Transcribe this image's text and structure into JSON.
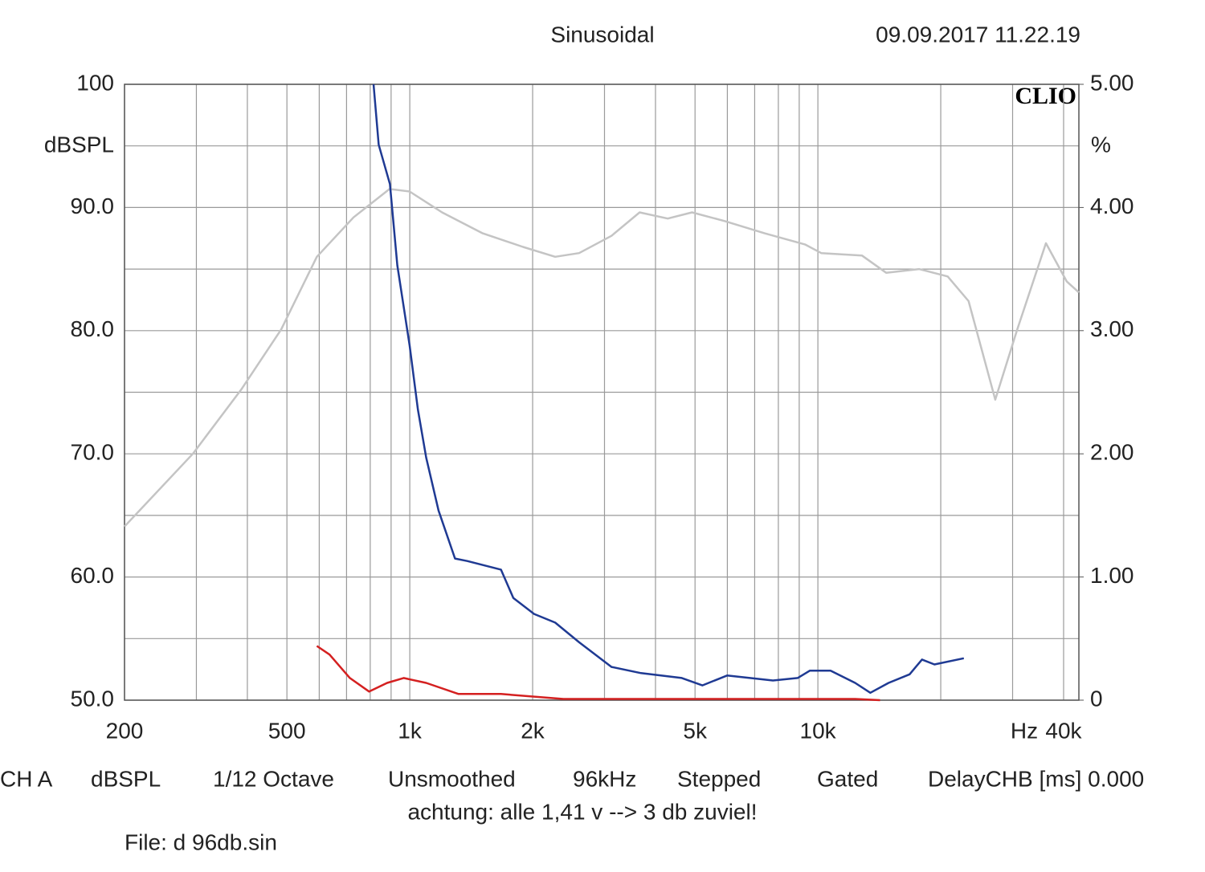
{
  "chart_data": {
    "type": "line",
    "title": "Sinusoidal",
    "timestamp": "09.09.2017 11.22.19",
    "logo": "CLIO",
    "y_label": "dBSPL",
    "y2_label": "%",
    "x_label": "Hz",
    "x_log": true,
    "grid": true,
    "xlim": [
      200,
      43600
    ],
    "xticks": [
      200,
      500,
      {
        "value": 1000,
        "label": "1k"
      },
      {
        "value": 2000,
        "label": "2k"
      },
      {
        "value": 5000,
        "label": "5k"
      },
      {
        "value": 10000,
        "label": "10k"
      },
      {
        "value": 40000,
        "label": "40k"
      }
    ],
    "xgrid": [
      300,
      400,
      600,
      700,
      800,
      900,
      3000,
      4000,
      6000,
      7000,
      8000,
      9000,
      20000,
      30000
    ],
    "ylim": [
      50,
      100
    ],
    "yticks": [
      {
        "value": 50,
        "label": "50.0"
      },
      {
        "value": 60,
        "label": "60.0"
      },
      {
        "value": 70,
        "label": "70.0"
      },
      {
        "value": 80,
        "label": "80.0"
      },
      {
        "value": 90,
        "label": "90.0"
      },
      100
    ],
    "ygrid": [
      55,
      65,
      75,
      85,
      95
    ],
    "y2lim": [
      0,
      5
    ],
    "y2ticks": [
      0,
      {
        "value": 1,
        "label": "1.00"
      },
      {
        "value": 2,
        "label": "2.00"
      },
      {
        "value": 3,
        "label": "3.00"
      },
      {
        "value": 4,
        "label": "4.00"
      },
      {
        "value": 5,
        "label": "5.00"
      }
    ],
    "series": [
      {
        "color": "#c4c4c4",
        "axis": "y",
        "x": [
          200,
          294,
          386,
          484,
          592,
          728,
          892,
          999,
          1200,
          1509,
          1894,
          2271,
          2600,
          3121,
          3657,
          4286,
          4914,
          5907,
          7406,
          9296,
          10190,
          12820,
          14700,
          17700,
          20800,
          23400,
          27200,
          30800,
          36200,
          40700,
          43600
        ],
        "values": [
          64.1,
          70.0,
          75.2,
          80.1,
          86.0,
          89.2,
          91.5,
          91.3,
          89.6,
          87.9,
          86.8,
          86.0,
          86.3,
          87.7,
          89.6,
          89.1,
          89.6,
          88.9,
          87.9,
          87.0,
          86.3,
          86.1,
          84.7,
          85.0,
          84.4,
          82.4,
          74.4,
          80.1,
          87.1,
          84.0,
          83.1
        ]
      },
      {
        "color": "#1f3a93",
        "axis": "y2",
        "x": [
          815,
          839,
          894,
          932,
          999,
          1047,
          1097,
          1176,
          1291,
          1383,
          1673,
          1794,
          2016,
          2271,
          2600,
          3121,
          3686,
          4640,
          5210,
          5990,
          7760,
          8920,
          9560,
          10740,
          12340,
          13440,
          14900,
          16780,
          17990,
          19300,
          22780
        ],
        "values": [
          5.0,
          4.51,
          4.19,
          3.53,
          2.88,
          2.36,
          1.97,
          1.54,
          1.15,
          1.13,
          1.06,
          0.83,
          0.7,
          0.63,
          0.47,
          0.27,
          0.22,
          0.18,
          0.12,
          0.2,
          0.16,
          0.18,
          0.24,
          0.24,
          0.14,
          0.06,
          0.14,
          0.21,
          0.33,
          0.29,
          0.34
        ]
      },
      {
        "color": "#d42020",
        "axis": "y2",
        "x": [
          592,
          636,
          713,
          795,
          880,
          966,
          1097,
          1317,
          1673,
          2380,
          3686,
          9296,
          12340,
          14200
        ],
        "values": [
          0.44,
          0.37,
          0.18,
          0.07,
          0.14,
          0.18,
          0.14,
          0.05,
          0.05,
          0.01,
          0.01,
          0.01,
          0.01,
          0
        ]
      }
    ],
    "footer": [
      "CH A",
      "dBSPL",
      "1/12 Octave",
      "Unsmoothed",
      "96kHz",
      "Stepped",
      "Gated",
      "DelayCHB [ms] 0.000"
    ],
    "note": "achtung: alle 1,41 v --> 3 db zuviel!",
    "file": "File: d 96db.sin"
  }
}
